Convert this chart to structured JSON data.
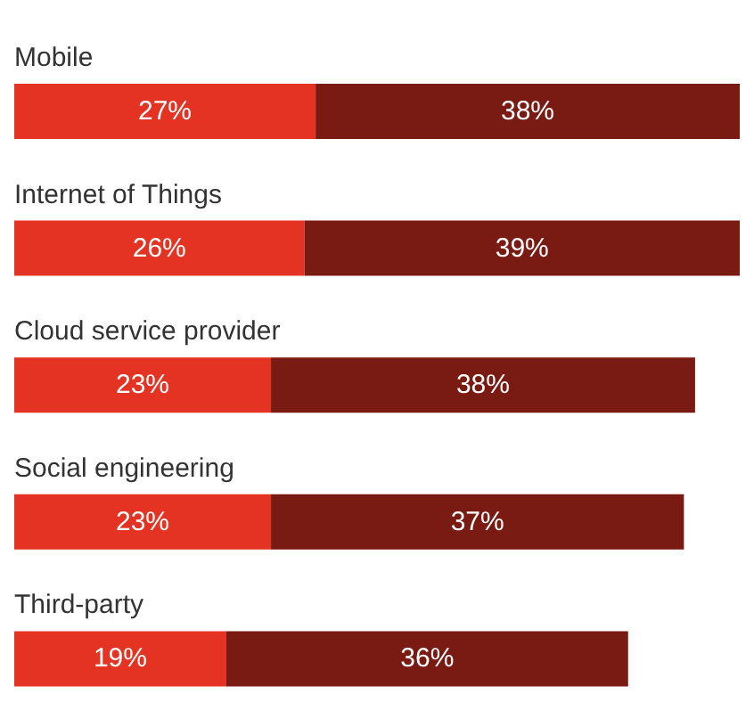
{
  "chart_data": {
    "type": "bar",
    "orientation": "horizontal",
    "stacked": true,
    "legend": false,
    "grid": false,
    "categories": [
      "Mobile",
      "Internet of Things",
      "Cloud service provider",
      "Social engineering",
      "Third-party"
    ],
    "series": [
      {
        "color": "#e43322",
        "values": [
          27,
          26,
          23,
          23,
          19
        ],
        "value_labels": [
          "27%",
          "26%",
          "23%",
          "23%",
          "19%"
        ]
      },
      {
        "color": "#7a1b13",
        "values": [
          38,
          39,
          38,
          37,
          36
        ],
        "value_labels": [
          "38%",
          "39%",
          "38%",
          "37%",
          "36%"
        ]
      }
    ]
  }
}
